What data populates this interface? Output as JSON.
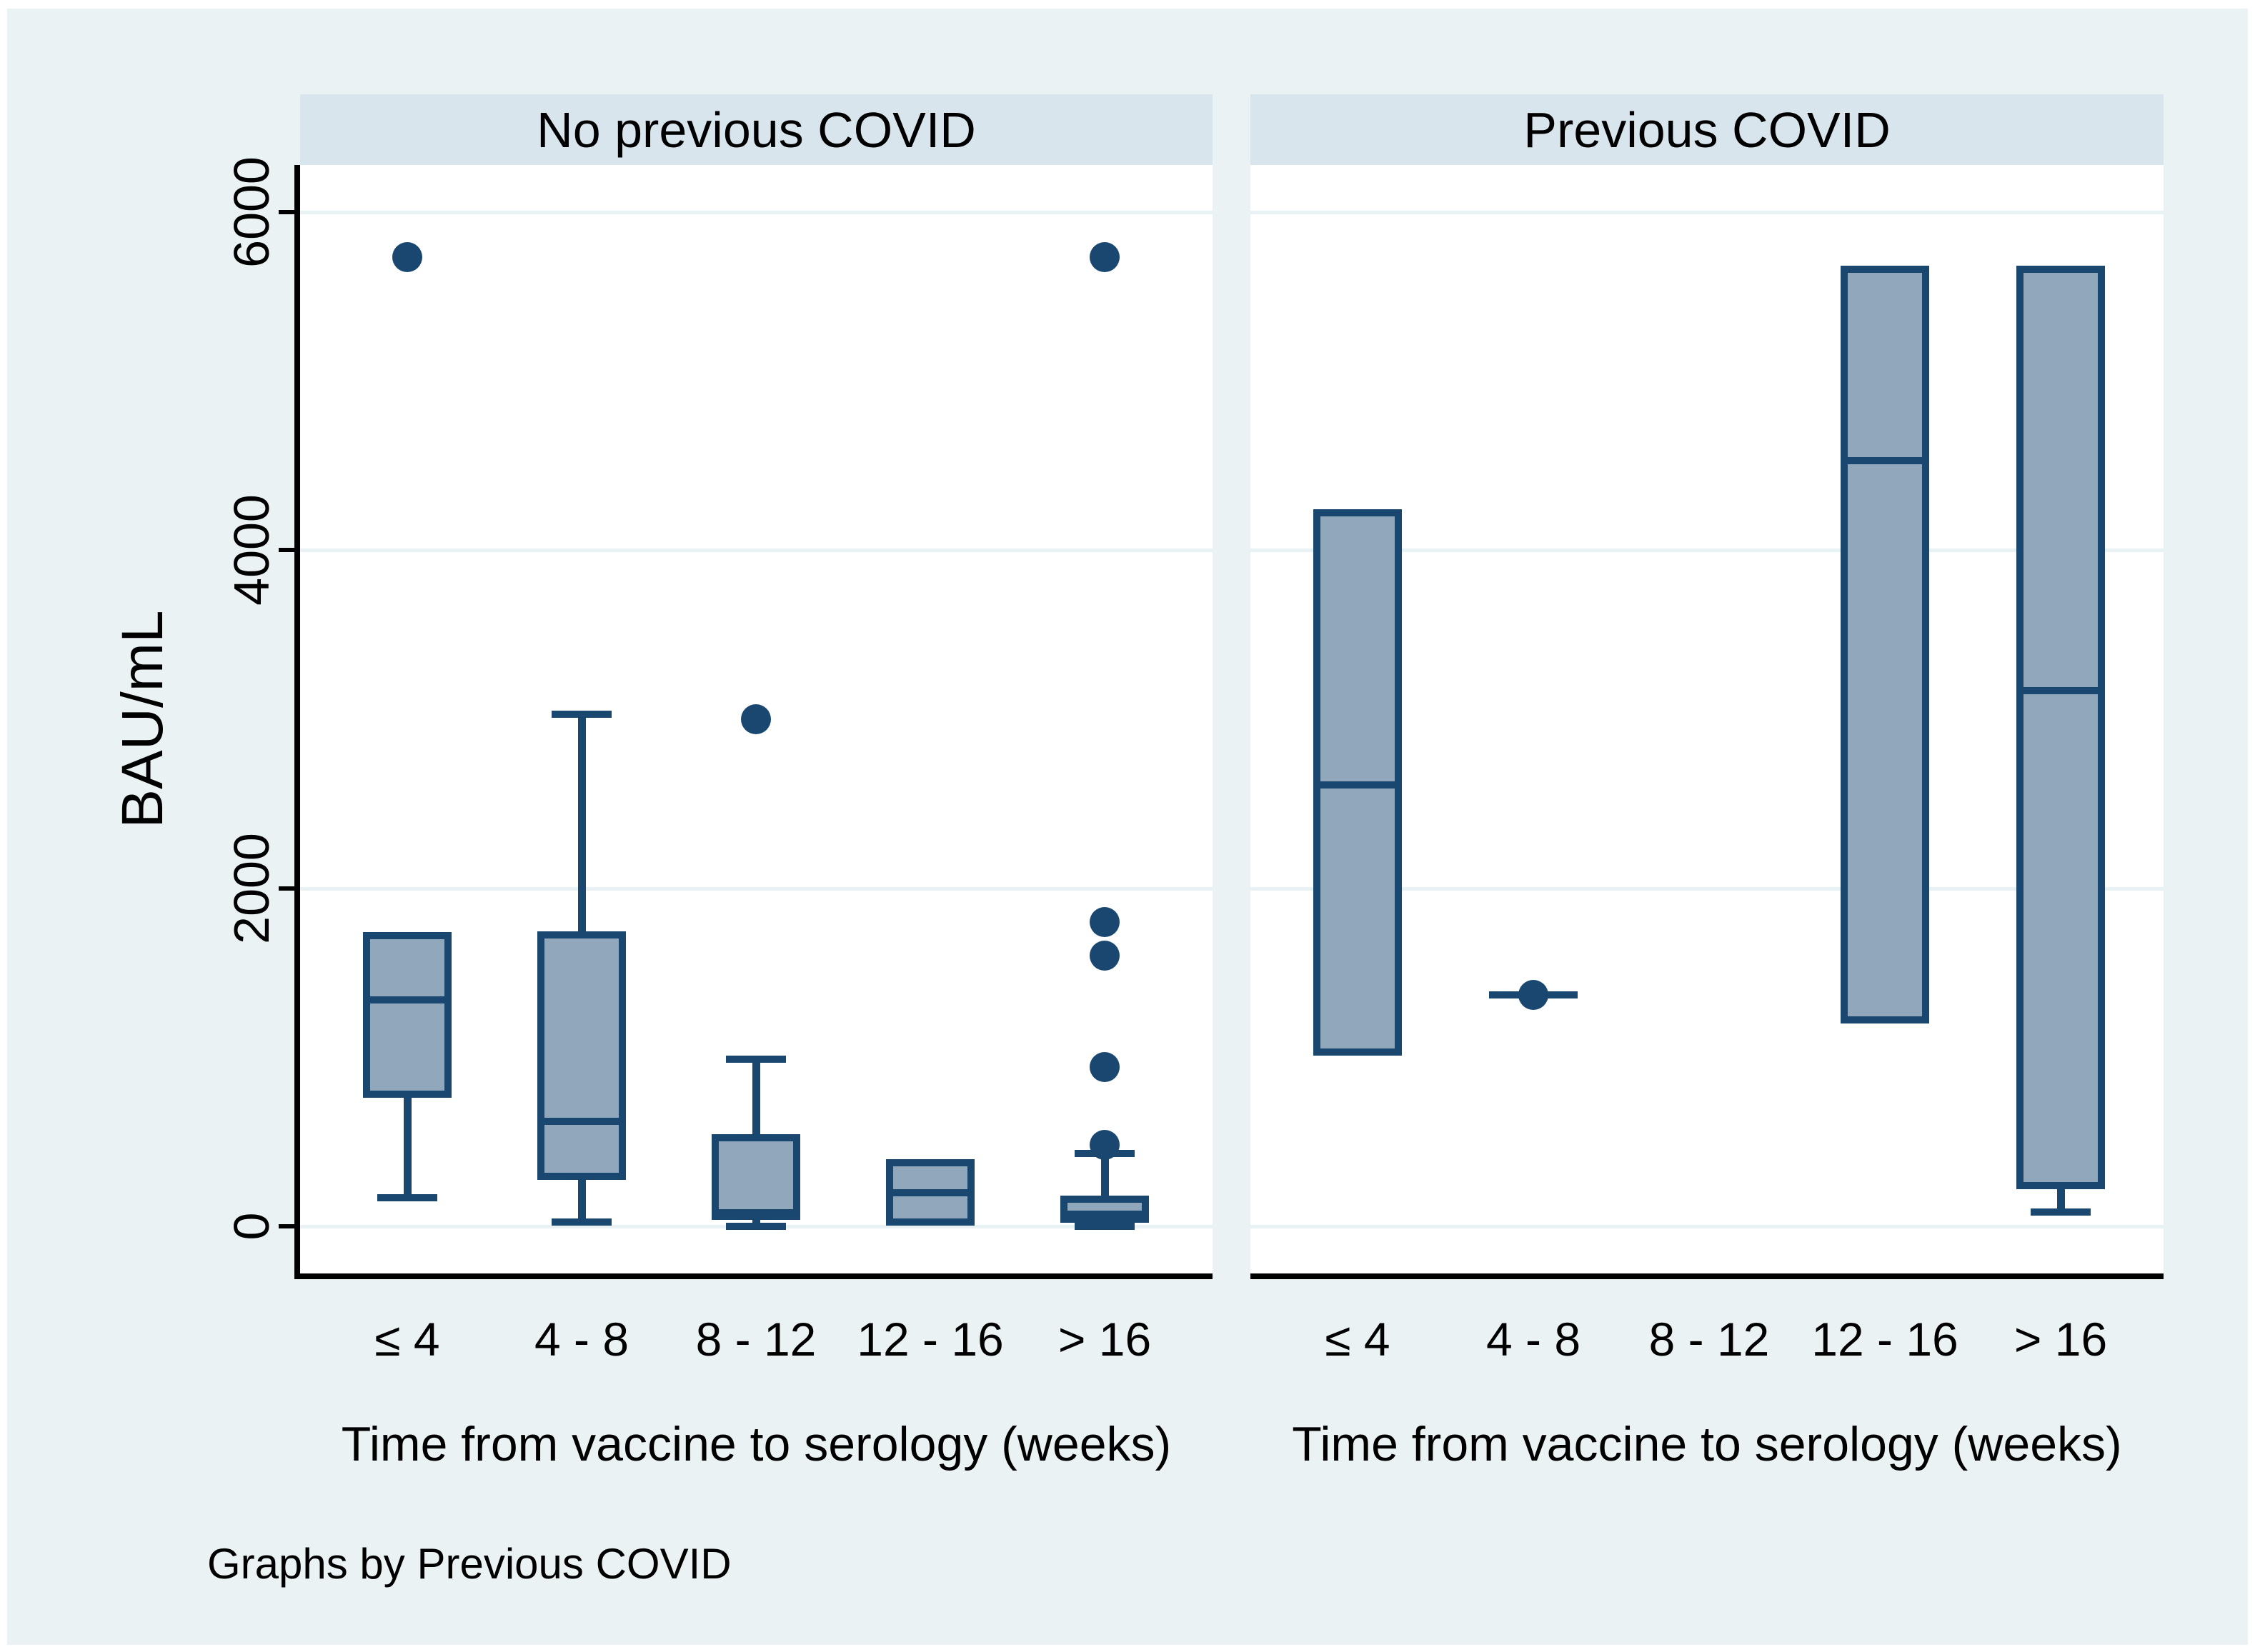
{
  "chart_data": {
    "type": "box",
    "ylabel": "BAU/mL",
    "xlabel": "Time from vaccine to serology (weeks)",
    "caption": "Graphs by Previous COVID",
    "categories": [
      "≤ 4",
      "4 - 8",
      "8 - 12",
      "12 - 16",
      "> 16"
    ],
    "y_ticks": [
      0,
      2000,
      4000,
      6000
    ],
    "y_tick_labels": [
      "0",
      "2000",
      "4000",
      "6000"
    ],
    "y_axis_range": [
      -280,
      6280
    ],
    "grid": true,
    "legend": "none",
    "colors": {
      "background": "#eaf2f3",
      "header_band": "#d9e5ec",
      "plot_background": "#ffffff",
      "gridline": "#e8f1f3",
      "axis": "#000000",
      "box_fill": "#90a7bc",
      "box_stroke": "#1a476f",
      "outlier": "#1a476f",
      "text": "#000000"
    },
    "panels": [
      {
        "title": "No previous COVID",
        "boxes": [
          {
            "category": "≤ 4",
            "q1": 760,
            "median": 1340,
            "q3": 1740,
            "whisker_low": 170,
            "whisker_high": null,
            "outliers": [
              5730
            ]
          },
          {
            "category": "4 - 8",
            "q1": 275,
            "median": 620,
            "q3": 1745,
            "whisker_low": 25,
            "whisker_high": 3030,
            "outliers": []
          },
          {
            "category": "8 - 12",
            "q1": 40,
            "median": 80,
            "q3": 545,
            "whisker_low": 0,
            "whisker_high": 990,
            "outliers": [
              3000
            ]
          },
          {
            "category": "12 - 16",
            "q1": 5,
            "median": 200,
            "q3": 395,
            "whisker_low": null,
            "whisker_high": null,
            "outliers": []
          },
          {
            "category": "> 16",
            "q1": 20,
            "median": 70,
            "q3": 180,
            "whisker_low": 0,
            "whisker_high": 430,
            "outliers": [
              5730,
              1800,
              1600,
              940,
              480
            ]
          }
        ]
      },
      {
        "title": "Previous COVID",
        "boxes": [
          {
            "category": "≤ 4",
            "q1": 1010,
            "median": 2610,
            "q3": 4240,
            "whisker_low": null,
            "whisker_high": null,
            "outliers": []
          },
          {
            "category": "4 - 8",
            "single_value": 1370
          },
          {
            "category": "8 - 12",
            "no_data": true
          },
          {
            "category": "12 - 16",
            "q1": 1200,
            "median": 4530,
            "q3": 5680,
            "whisker_low": null,
            "whisker_high": null,
            "outliers": []
          },
          {
            "category": "> 16",
            "q1": 220,
            "median": 3170,
            "q3": 5680,
            "whisker_low": 85,
            "whisker_high": null,
            "outliers": []
          }
        ]
      }
    ]
  }
}
